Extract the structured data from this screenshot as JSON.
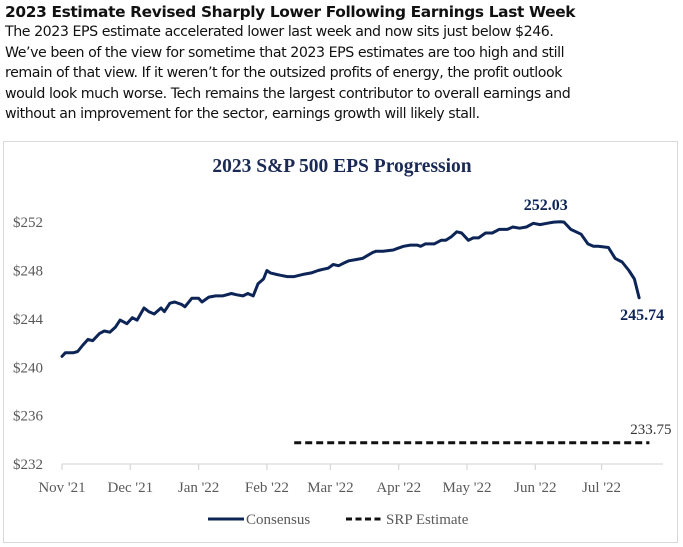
{
  "article": {
    "headline": "2023 Estimate Revised Sharply Lower Following Earnings Last Week",
    "body_lines": [
      "The 2023 EPS estimate accelerated lower last week and now sits just below $246.",
      "We’ve been of the view for sometime that 2023 EPS estimates are too high and still",
      "remain of that view. If it weren’t for the outsized profits of energy, the profit outlook",
      "would look much worse. Tech remains the largest contributor to overall earnings and",
      "without an improvement for the sector, earnings growth will likely stall."
    ]
  },
  "colors": {
    "consensus": "#0d2456",
    "srp": "#111111",
    "title": "#1a2a55",
    "tick_text": "#595959",
    "axis": "#d9d9d9"
  },
  "chart_data": {
    "type": "line",
    "title": "2023 S&P 500 EPS Progression",
    "xlabel": "",
    "ylabel": "",
    "ylim": [
      232,
      253.5
    ],
    "xlim": [
      0,
      8.8
    ],
    "grid": false,
    "legend_position": "bottom",
    "y_ticks": [
      232,
      236,
      240,
      244,
      248,
      252
    ],
    "y_tick_labels": [
      "$232",
      "$236",
      "$240",
      "$244",
      "$248",
      "$252"
    ],
    "x_ticks": [
      0,
      1,
      2,
      3,
      3.93,
      4.93,
      5.93,
      6.93,
      7.9
    ],
    "x_tick_labels": [
      "Nov '21",
      "Dec '21",
      "Jan '22",
      "Feb '22",
      "Mar '22",
      "Apr '22",
      "May '22",
      "Jun '22",
      "Jul '22"
    ],
    "x_unit": "months since Nov 1 2021",
    "series": [
      {
        "name": "Consensus",
        "style": "solid",
        "x": [
          0,
          0.05,
          0.17,
          0.23,
          0.3,
          0.38,
          0.45,
          0.55,
          0.62,
          0.7,
          0.78,
          0.85,
          0.95,
          1.03,
          1.1,
          1.2,
          1.27,
          1.35,
          1.45,
          1.5,
          1.58,
          1.65,
          1.75,
          1.8,
          1.9,
          2.0,
          2.05,
          2.15,
          2.25,
          2.35,
          2.48,
          2.55,
          2.65,
          2.72,
          2.8,
          2.87,
          2.95,
          3.0,
          3.05,
          3.12,
          3.2,
          3.3,
          3.4,
          3.55,
          3.65,
          3.75,
          3.82,
          3.9,
          3.97,
          4.05,
          4.12,
          4.2,
          4.3,
          4.4,
          4.55,
          4.6,
          4.7,
          4.85,
          4.9,
          5.0,
          5.1,
          5.2,
          5.25,
          5.32,
          5.45,
          5.55,
          5.62,
          5.7,
          5.78,
          5.85,
          5.95,
          6.02,
          6.1,
          6.2,
          6.3,
          6.4,
          6.52,
          6.6,
          6.7,
          6.8,
          6.9,
          7.0,
          7.1,
          7.2,
          7.3,
          7.35,
          7.45,
          7.6,
          7.7,
          7.78,
          7.85,
          8.0,
          8.1,
          8.2,
          8.3,
          8.38,
          8.45
        ],
        "values": [
          240.9,
          241.2,
          241.2,
          241.3,
          241.8,
          242.3,
          242.2,
          242.8,
          243.0,
          242.9,
          243.3,
          243.9,
          243.6,
          244.1,
          243.9,
          244.9,
          244.6,
          244.4,
          244.9,
          244.6,
          245.3,
          245.4,
          245.2,
          245.0,
          245.7,
          245.7,
          245.4,
          245.8,
          245.9,
          245.9,
          246.1,
          246.0,
          245.9,
          246.1,
          245.9,
          246.9,
          247.3,
          248.0,
          247.8,
          247.7,
          247.6,
          247.5,
          247.5,
          247.7,
          247.8,
          248.0,
          248.1,
          248.2,
          248.5,
          248.4,
          248.6,
          248.8,
          248.9,
          249.0,
          249.5,
          249.6,
          249.6,
          249.7,
          249.8,
          250.0,
          250.1,
          250.1,
          250.0,
          250.2,
          250.2,
          250.5,
          250.5,
          250.8,
          251.2,
          251.1,
          250.5,
          250.7,
          250.7,
          251.1,
          251.1,
          251.4,
          251.4,
          251.6,
          251.5,
          251.6,
          251.9,
          251.8,
          251.9,
          252.0,
          252.03,
          252.0,
          251.4,
          251.0,
          250.2,
          250.0,
          250.0,
          249.9,
          249.0,
          248.7,
          248.0,
          247.3,
          245.74
        ]
      },
      {
        "name": "SRP Estimate",
        "style": "dashed",
        "x": [
          3.4,
          8.6
        ],
        "values": [
          233.75,
          233.75
        ]
      }
    ],
    "annotations": [
      {
        "text": "252.03",
        "x": 7.2,
        "y": 252.03,
        "position": "above"
      },
      {
        "text": "245.74",
        "x": 8.45,
        "y": 245.74,
        "position": "below-right"
      },
      {
        "text": "233.75",
        "x": 8.3,
        "y": 233.75,
        "position": "above"
      }
    ]
  }
}
